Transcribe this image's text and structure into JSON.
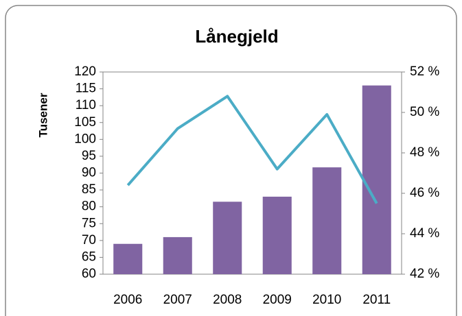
{
  "chart_data": {
    "type": "bar",
    "title": "Lånegjeld",
    "y_axis_label": "Tusener",
    "categories": [
      "2006",
      "2007",
      "2008",
      "2009",
      "2010",
      "2011"
    ],
    "series": [
      {
        "type": "bar",
        "color": "#8064a2",
        "values": [
          69,
          71,
          81.5,
          83,
          91.7,
          116
        ]
      },
      {
        "type": "line",
        "axis": "y2",
        "color": "#4bacc6",
        "values": [
          46.4,
          49.2,
          50.8,
          47.2,
          49.9,
          45.5
        ]
      }
    ],
    "ylim": [
      60,
      120
    ],
    "yticks": [
      60,
      65,
      70,
      75,
      80,
      85,
      90,
      95,
      100,
      105,
      110,
      115,
      120
    ],
    "y2lim": [
      42,
      52
    ],
    "y2ticks": [
      {
        "value": 42,
        "label": "42 %"
      },
      {
        "value": 44,
        "label": "44 %"
      },
      {
        "value": 46,
        "label": "46 %"
      },
      {
        "value": 48,
        "label": "48 %"
      },
      {
        "value": 50,
        "label": "50 %"
      },
      {
        "value": 52,
        "label": "52 %"
      }
    ],
    "grid": false
  }
}
